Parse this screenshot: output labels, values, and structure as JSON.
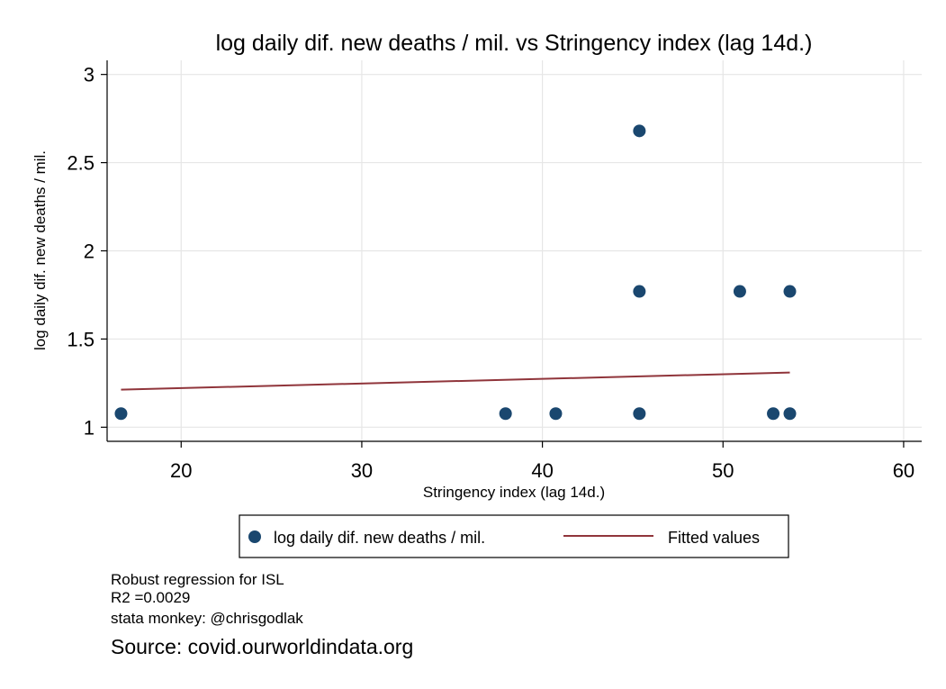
{
  "chart_data": {
    "type": "scatter",
    "title": "log daily dif. new deaths / mil. vs Stringency index (lag 14d.)",
    "xlabel": "Stringency index (lag 14d.)",
    "ylabel": "log daily dif. new deaths / mil.",
    "xlim": [
      15.9,
      61
    ],
    "ylim": [
      0.92,
      3.08
    ],
    "xticks": [
      20,
      30,
      40,
      50,
      60
    ],
    "yticks": [
      1,
      1.5,
      2,
      2.5,
      3
    ],
    "xtick_labels": [
      "20",
      "30",
      "40",
      "50",
      "60"
    ],
    "ytick_labels": [
      "1",
      "1.5",
      "2",
      "2.5",
      "3"
    ],
    "grid": true,
    "legend_position": "bottom",
    "series": [
      {
        "name": "log daily dif. new deaths / mil.",
        "type": "scatter",
        "color": "#1a476f",
        "points": [
          {
            "x": 16.67,
            "y": 1.077
          },
          {
            "x": 37.96,
            "y": 1.077
          },
          {
            "x": 40.74,
            "y": 1.077
          },
          {
            "x": 45.37,
            "y": 1.077
          },
          {
            "x": 45.37,
            "y": 1.77
          },
          {
            "x": 45.37,
            "y": 2.68
          },
          {
            "x": 50.93,
            "y": 1.77
          },
          {
            "x": 52.78,
            "y": 1.077
          },
          {
            "x": 53.7,
            "y": 1.077
          },
          {
            "x": 53.7,
            "y": 1.77
          }
        ]
      },
      {
        "name": "Fitted values",
        "type": "line",
        "color": "#90353b",
        "points": [
          {
            "x": 16.67,
            "y": 1.213
          },
          {
            "x": 53.7,
            "y": 1.31
          }
        ]
      }
    ]
  },
  "notes": {
    "line1": "Robust regression for ISL",
    "line2": "R2 =0.0029",
    "line3": "stata monkey: @chrisgodlak"
  },
  "source": "Source: covid.ourworldindata.org"
}
